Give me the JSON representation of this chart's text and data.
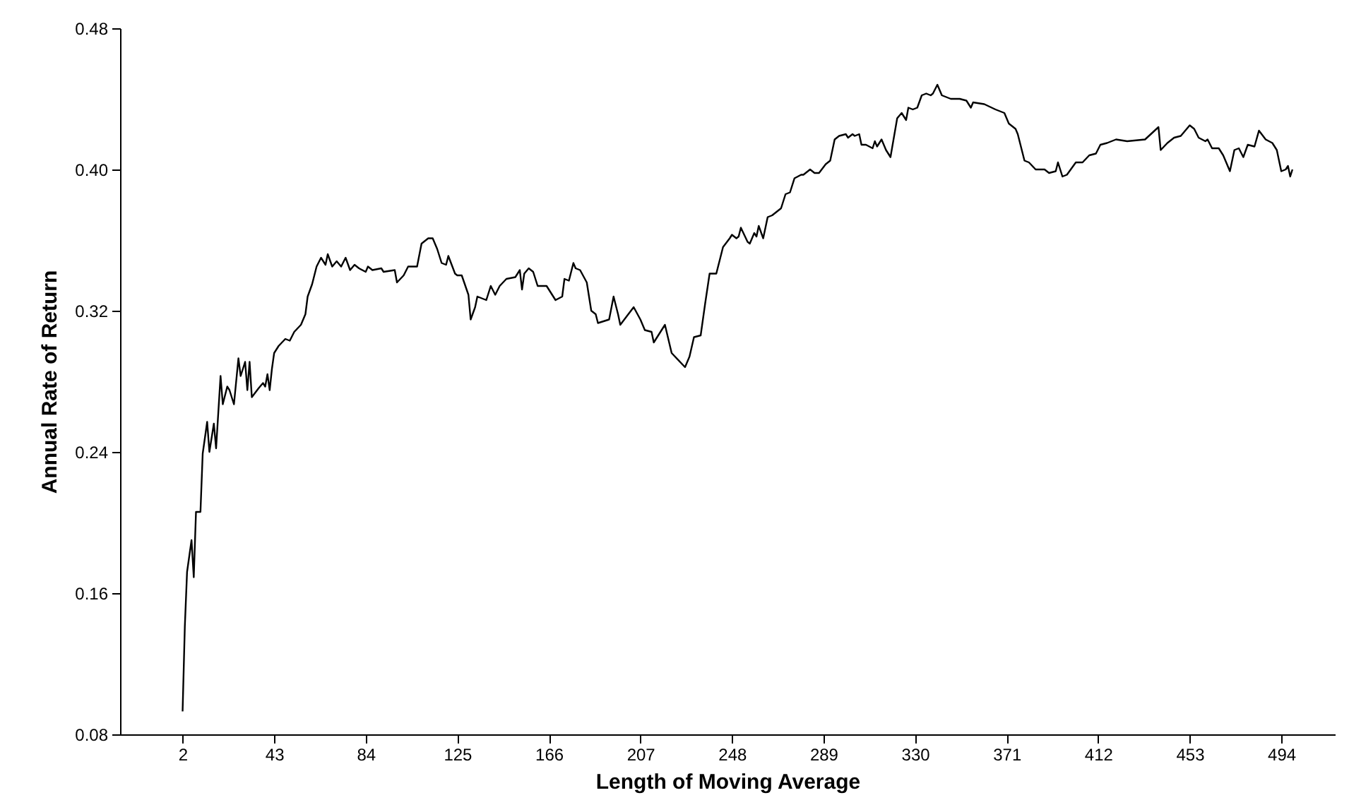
{
  "chart_data": {
    "type": "line",
    "xlabel": "Length of Moving Average",
    "ylabel": "Annual Rate of Return",
    "xlim": [
      -26,
      518
    ],
    "xticks": [
      2,
      43,
      84,
      125,
      166,
      207,
      248,
      289,
      330,
      371,
      412,
      453,
      494
    ],
    "ylim": [
      0.08,
      0.48
    ],
    "yticks": [
      {
        "value": 0.08,
        "label": "0.08"
      },
      {
        "value": 0.16,
        "label": "0.16"
      },
      {
        "value": 0.24,
        "label": "0.24"
      },
      {
        "value": 0.32,
        "label": "0.32"
      },
      {
        "value": 0.4,
        "label": "0.40"
      },
      {
        "value": 0.48,
        "label": "0.48"
      }
    ],
    "grid": false,
    "marker": "none",
    "line_style": "solid",
    "series": [
      {
        "color": "#000000",
        "x": [
          2,
          3,
          4,
          6,
          7,
          8,
          10,
          11,
          13,
          14,
          16,
          17,
          19,
          20,
          22,
          23,
          25,
          27,
          28,
          30,
          31,
          32,
          33,
          36,
          38,
          39,
          40,
          41,
          42,
          43,
          45,
          48,
          50,
          52,
          55,
          57,
          58,
          60,
          62,
          64,
          66,
          67,
          69,
          71,
          73,
          75,
          77,
          79,
          81,
          84,
          85,
          87,
          91,
          92,
          97,
          98,
          101,
          103,
          107,
          109,
          112,
          114,
          116,
          118,
          120,
          121,
          124,
          125,
          127,
          130,
          131,
          133,
          134,
          138,
          140,
          142,
          144,
          147,
          151,
          153,
          154,
          155,
          157,
          159,
          161,
          165,
          167,
          169,
          172,
          173,
          175,
          177,
          178,
          180,
          183,
          185,
          187,
          188,
          193,
          195,
          197,
          198,
          201,
          204,
          207,
          209,
          212,
          213,
          215,
          218,
          221,
          227,
          229,
          231,
          234,
          236,
          238,
          241,
          244,
          247,
          248,
          250,
          251,
          252,
          255,
          256,
          258,
          259,
          260,
          262,
          264,
          266,
          270,
          272,
          274,
          276,
          279,
          280,
          283,
          285,
          287,
          290,
          292,
          294,
          296,
          299,
          300,
          302,
          303,
          305,
          306,
          308,
          311,
          312,
          313,
          315,
          317,
          319,
          322,
          324,
          326,
          327,
          329,
          331,
          333,
          335,
          337,
          338,
          340,
          342,
          346,
          350,
          353,
          355,
          356,
          361,
          366,
          370,
          372,
          375,
          376,
          379,
          381,
          384,
          388,
          390,
          393,
          394,
          396,
          398,
          402,
          405,
          408,
          411,
          413,
          416,
          420,
          425,
          433,
          439,
          440,
          443,
          446,
          449,
          453,
          455,
          457,
          460,
          461,
          463,
          466,
          468,
          471,
          473,
          475,
          477,
          479,
          482,
          484,
          487,
          490,
          492,
          494,
          496,
          497,
          498,
          499
        ],
        "values": [
          0.093,
          0.141,
          0.172,
          0.19,
          0.169,
          0.206,
          0.206,
          0.239,
          0.257,
          0.24,
          0.256,
          0.242,
          0.283,
          0.267,
          0.277,
          0.275,
          0.267,
          0.293,
          0.283,
          0.291,
          0.275,
          0.291,
          0.271,
          0.276,
          0.279,
          0.277,
          0.284,
          0.275,
          0.287,
          0.296,
          0.3,
          0.304,
          0.303,
          0.308,
          0.312,
          0.318,
          0.328,
          0.335,
          0.345,
          0.35,
          0.346,
          0.352,
          0.345,
          0.348,
          0.345,
          0.35,
          0.343,
          0.346,
          0.344,
          0.342,
          0.345,
          0.343,
          0.344,
          0.342,
          0.343,
          0.336,
          0.34,
          0.345,
          0.345,
          0.358,
          0.361,
          0.361,
          0.355,
          0.347,
          0.346,
          0.351,
          0.341,
          0.34,
          0.34,
          0.329,
          0.315,
          0.322,
          0.328,
          0.326,
          0.334,
          0.329,
          0.334,
          0.338,
          0.339,
          0.343,
          0.332,
          0.341,
          0.344,
          0.342,
          0.334,
          0.334,
          0.33,
          0.326,
          0.328,
          0.338,
          0.337,
          0.347,
          0.344,
          0.343,
          0.336,
          0.32,
          0.318,
          0.313,
          0.315,
          0.328,
          0.318,
          0.312,
          0.317,
          0.322,
          0.315,
          0.309,
          0.308,
          0.302,
          0.306,
          0.312,
          0.296,
          0.288,
          0.294,
          0.305,
          0.306,
          0.324,
          0.341,
          0.341,
          0.356,
          0.361,
          0.363,
          0.361,
          0.362,
          0.367,
          0.359,
          0.358,
          0.364,
          0.362,
          0.368,
          0.361,
          0.373,
          0.374,
          0.378,
          0.386,
          0.387,
          0.395,
          0.397,
          0.397,
          0.4,
          0.398,
          0.398,
          0.403,
          0.405,
          0.417,
          0.419,
          0.42,
          0.418,
          0.42,
          0.419,
          0.42,
          0.414,
          0.414,
          0.412,
          0.416,
          0.413,
          0.417,
          0.411,
          0.407,
          0.429,
          0.432,
          0.428,
          0.435,
          0.434,
          0.435,
          0.442,
          0.443,
          0.442,
          0.443,
          0.448,
          0.442,
          0.44,
          0.44,
          0.439,
          0.435,
          0.438,
          0.437,
          0.434,
          0.432,
          0.426,
          0.423,
          0.42,
          0.405,
          0.404,
          0.4,
          0.4,
          0.398,
          0.399,
          0.404,
          0.396,
          0.397,
          0.404,
          0.404,
          0.408,
          0.409,
          0.414,
          0.415,
          0.417,
          0.416,
          0.417,
          0.424,
          0.411,
          0.415,
          0.418,
          0.419,
          0.425,
          0.423,
          0.418,
          0.416,
          0.417,
          0.412,
          0.412,
          0.408,
          0.399,
          0.411,
          0.412,
          0.407,
          0.414,
          0.413,
          0.422,
          0.417,
          0.415,
          0.411,
          0.399,
          0.4,
          0.402,
          0.396,
          0.4
        ]
      }
    ]
  }
}
